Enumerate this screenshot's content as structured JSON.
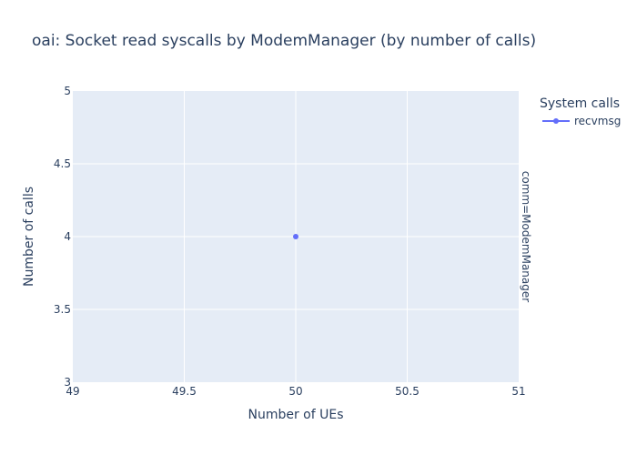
{
  "chart_data": {
    "type": "scatter",
    "title": "oai: Socket read syscalls by ModemManager (by number of calls)",
    "xlabel": "Number of UEs",
    "ylabel": "Number of calls",
    "xlim": [
      49,
      51
    ],
    "ylim": [
      3,
      5
    ],
    "x_ticks": [
      "49",
      "49.5",
      "50",
      "50.5",
      "51"
    ],
    "y_ticks": [
      "3",
      "3.5",
      "4",
      "4.5",
      "5"
    ],
    "grid": true,
    "legend": {
      "title": "System calls",
      "placement": "top-right",
      "entries": [
        "recvmsg"
      ]
    },
    "facet_label": "comm=ModemManager",
    "series": [
      {
        "name": "recvmsg",
        "color": "#636efa",
        "x": [
          50
        ],
        "y": [
          4
        ]
      }
    ],
    "colors": {
      "plot_bg": "#e5ecf6",
      "grid": "#ffffff",
      "text": "#2a3f5f"
    }
  }
}
